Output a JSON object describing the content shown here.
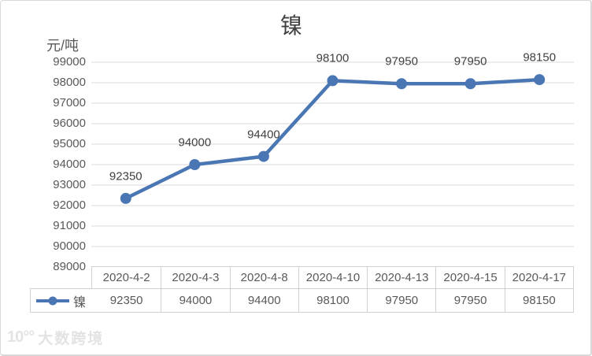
{
  "title": "镍",
  "axis_unit": "元/吨",
  "legend": {
    "label": "镍"
  },
  "watermark": {
    "logo": "10°°",
    "text": "大数跨境"
  },
  "colors": {
    "line": "#4a77b4",
    "grid": "#d9d9d9",
    "axis_text": "#595959",
    "data_label": "#404040",
    "table_border": "#d1d1d1"
  },
  "chart_data": {
    "type": "line",
    "title": "镍",
    "ylabel": "元/吨",
    "categories": [
      "2020-4-2",
      "2020-4-3",
      "2020-4-8",
      "2020-4-10",
      "2020-4-13",
      "2020-4-15",
      "2020-4-17"
    ],
    "series": [
      {
        "name": "镍",
        "values": [
          92350,
          94000,
          94400,
          98100,
          97950,
          97950,
          98150
        ]
      }
    ],
    "ylim": [
      89000,
      99000
    ],
    "ytick_interval": 1000,
    "grid": true,
    "data_labels": true,
    "legend_position": "table-left",
    "marker": "circle"
  }
}
